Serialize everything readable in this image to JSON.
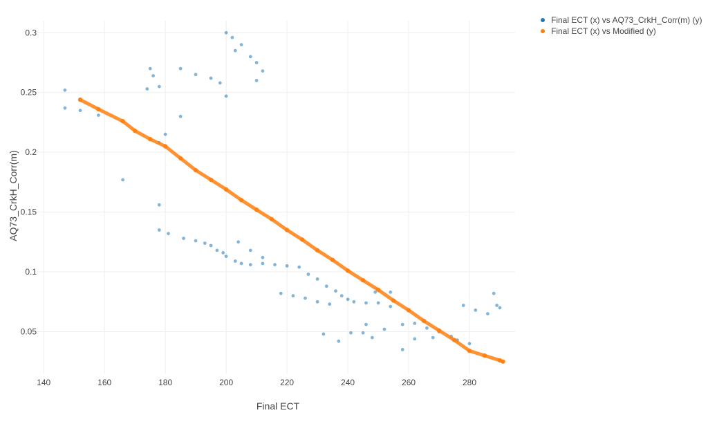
{
  "chart_data": {
    "type": "scatter",
    "title": "",
    "xlabel": "Final ECT",
    "ylabel": "AQ73_CrkH_Corr(m)",
    "xlim": [
      137,
      295
    ],
    "ylim": [
      0.015,
      0.31
    ],
    "x_ticks": [
      140,
      160,
      180,
      200,
      220,
      240,
      260,
      280
    ],
    "y_ticks": [
      0.05,
      0.1,
      0.15,
      0.2,
      0.25,
      0.3
    ],
    "x_tick_labels": [
      "140",
      "160",
      "180",
      "200",
      "220",
      "240",
      "260",
      "280"
    ],
    "y_tick_labels": [
      "0.05",
      "0.1",
      "0.15",
      "0.2",
      "0.25",
      "0.3"
    ],
    "grid": true,
    "legend_position": "top-right-outside",
    "series": [
      {
        "name": "Final ECT (x) vs AQ73_CrkH_Corr(m) (y)",
        "color": "#1f77b4",
        "points": [
          [
            147,
            0.237
          ],
          [
            152,
            0.235
          ],
          [
            158,
            0.231
          ],
          [
            147,
            0.252
          ],
          [
            166,
            0.177
          ],
          [
            174,
            0.253
          ],
          [
            176,
            0.264
          ],
          [
            178,
            0.255
          ],
          [
            175,
            0.27
          ],
          [
            180,
            0.215
          ],
          [
            185,
            0.27
          ],
          [
            190,
            0.265
          ],
          [
            195,
            0.262
          ],
          [
            198,
            0.258
          ],
          [
            200,
            0.247
          ],
          [
            200,
            0.3
          ],
          [
            202,
            0.296
          ],
          [
            203,
            0.285
          ],
          [
            205,
            0.29
          ],
          [
            208,
            0.28
          ],
          [
            210,
            0.275
          ],
          [
            212,
            0.268
          ],
          [
            210,
            0.26
          ],
          [
            185,
            0.23
          ],
          [
            178,
            0.208
          ],
          [
            178,
            0.156
          ],
          [
            178,
            0.135
          ],
          [
            181,
            0.132
          ],
          [
            186,
            0.128
          ],
          [
            190,
            0.126
          ],
          [
            193,
            0.124
          ],
          [
            195,
            0.122
          ],
          [
            197,
            0.118
          ],
          [
            199,
            0.116
          ],
          [
            200,
            0.113
          ],
          [
            203,
            0.109
          ],
          [
            205,
            0.107
          ],
          [
            208,
            0.106
          ],
          [
            212,
            0.107
          ],
          [
            216,
            0.106
          ],
          [
            220,
            0.105
          ],
          [
            224,
            0.104
          ],
          [
            227,
            0.098
          ],
          [
            230,
            0.094
          ],
          [
            233,
            0.088
          ],
          [
            236,
            0.084
          ],
          [
            238,
            0.08
          ],
          [
            240,
            0.077
          ],
          [
            242,
            0.075
          ],
          [
            246,
            0.074
          ],
          [
            250,
            0.074
          ],
          [
            254,
            0.071
          ],
          [
            218,
            0.082
          ],
          [
            222,
            0.08
          ],
          [
            226,
            0.078
          ],
          [
            230,
            0.075
          ],
          [
            234,
            0.073
          ],
          [
            246,
            0.056
          ],
          [
            252,
            0.052
          ],
          [
            258,
            0.056
          ],
          [
            262,
            0.057
          ],
          [
            266,
            0.053
          ],
          [
            270,
            0.05
          ],
          [
            274,
            0.046
          ],
          [
            278,
            0.072
          ],
          [
            282,
            0.068
          ],
          [
            286,
            0.065
          ],
          [
            289,
            0.072
          ],
          [
            288,
            0.082
          ],
          [
            290,
            0.07
          ],
          [
            241,
            0.049
          ],
          [
            245,
            0.049
          ],
          [
            237,
            0.042
          ],
          [
            232,
            0.048
          ],
          [
            248,
            0.045
          ],
          [
            262,
            0.044
          ],
          [
            268,
            0.045
          ],
          [
            276,
            0.043
          ],
          [
            280,
            0.04
          ],
          [
            258,
            0.035
          ],
          [
            249,
            0.083
          ],
          [
            254,
            0.083
          ],
          [
            212,
            0.112
          ],
          [
            208,
            0.118
          ],
          [
            204,
            0.125
          ]
        ]
      },
      {
        "name": "Final ECT (x) vs Modified (y)",
        "color": "#ff7f0e",
        "points": [
          [
            152,
            0.244
          ],
          [
            158,
            0.236
          ],
          [
            166,
            0.226
          ],
          [
            170,
            0.218
          ],
          [
            175,
            0.211
          ],
          [
            180,
            0.205
          ],
          [
            185,
            0.195
          ],
          [
            190,
            0.185
          ],
          [
            195,
            0.177
          ],
          [
            200,
            0.169
          ],
          [
            205,
            0.16
          ],
          [
            210,
            0.152
          ],
          [
            215,
            0.144
          ],
          [
            220,
            0.135
          ],
          [
            225,
            0.127
          ],
          [
            230,
            0.118
          ],
          [
            235,
            0.11
          ],
          [
            240,
            0.101
          ],
          [
            245,
            0.093
          ],
          [
            250,
            0.085
          ],
          [
            255,
            0.076
          ],
          [
            260,
            0.068
          ],
          [
            265,
            0.059
          ],
          [
            270,
            0.051
          ],
          [
            275,
            0.043
          ],
          [
            280,
            0.034
          ],
          [
            285,
            0.03
          ],
          [
            290,
            0.026
          ],
          [
            291,
            0.025
          ]
        ]
      }
    ]
  }
}
